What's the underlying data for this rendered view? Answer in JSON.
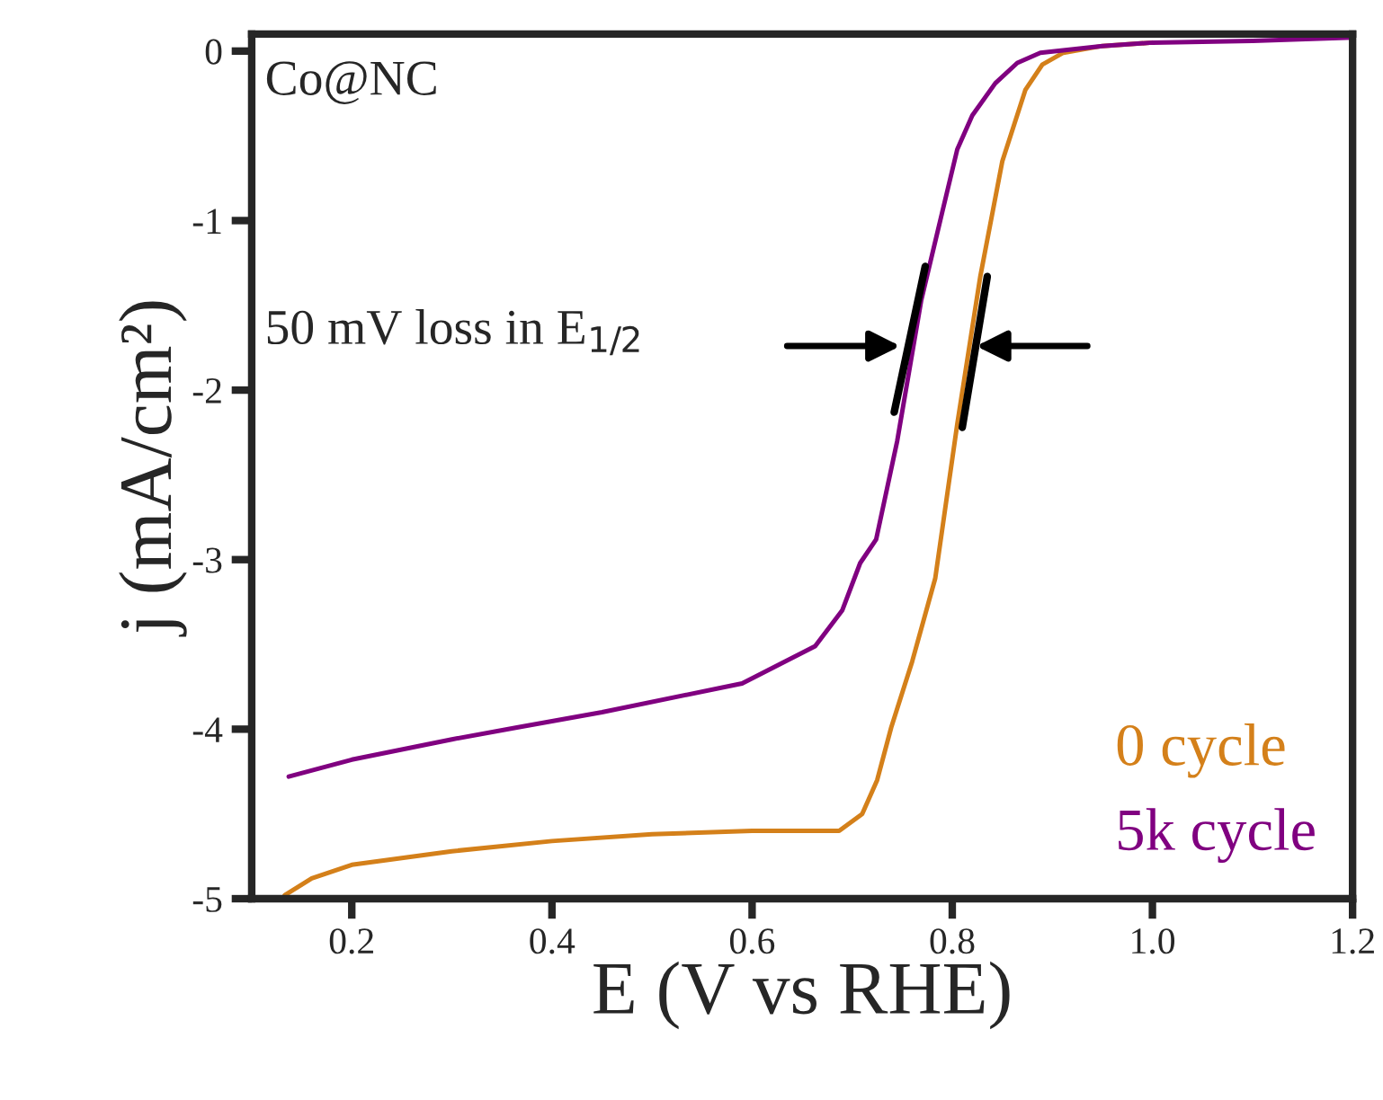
{
  "chart_data": {
    "type": "line",
    "xlabel": "E (V vs RHE)",
    "ylabel": "j (mA/cm²)",
    "xlim": [
      0.1,
      1.2
    ],
    "ylim": [
      -5,
      0.1
    ],
    "xticks": [
      {
        "value": 0.2,
        "label": "0.2"
      },
      {
        "value": 0.4,
        "label": "0.4"
      },
      {
        "value": 0.6,
        "label": "0.6"
      },
      {
        "value": 0.8,
        "label": "0.8"
      },
      {
        "value": 1.0,
        "label": "1.0"
      },
      {
        "value": 1.2,
        "label": "1.2"
      }
    ],
    "yticks": [
      0,
      -1,
      -2,
      -3,
      -4,
      -5
    ],
    "grid": false,
    "legend": "bottom right",
    "marker": "none",
    "line_style": "solid",
    "annotations": [
      "Co@NC",
      "50 mV loss in E$_{1/2}$"
    ],
    "series": [
      {
        "name": "0 cycle",
        "color": "#d4801a",
        "x": [
          0.133,
          0.16,
          0.2,
          0.3,
          0.4,
          0.5,
          0.6,
          0.687,
          0.71,
          0.725,
          0.739,
          0.76,
          0.783,
          0.805,
          0.828,
          0.85,
          0.873,
          0.89,
          0.911,
          0.95,
          1.0
        ],
        "values": [
          -4.98,
          -4.88,
          -4.8,
          -4.72,
          -4.66,
          -4.62,
          -4.6,
          -4.6,
          -4.5,
          -4.3,
          -3.99,
          -3.6,
          -3.11,
          -2.2,
          -1.33,
          -0.65,
          -0.23,
          -0.08,
          -0.01,
          0.03,
          0.05
        ]
      },
      {
        "name": "5k cycle",
        "color": "#800080",
        "x": [
          0.137,
          0.2,
          0.3,
          0.365,
          0.45,
          0.59,
          0.663,
          0.69,
          0.708,
          0.724,
          0.745,
          0.769,
          0.79,
          0.805,
          0.82,
          0.843,
          0.865,
          0.888,
          0.95,
          1.0,
          1.1,
          1.2
        ],
        "values": [
          -4.28,
          -4.18,
          -4.06,
          -3.99,
          -3.9,
          -3.73,
          -3.51,
          -3.3,
          -3.02,
          -2.88,
          -2.3,
          -1.47,
          -0.95,
          -0.58,
          -0.38,
          -0.19,
          -0.07,
          -0.01,
          0.03,
          0.05,
          0.06,
          0.08
        ]
      }
    ]
  }
}
